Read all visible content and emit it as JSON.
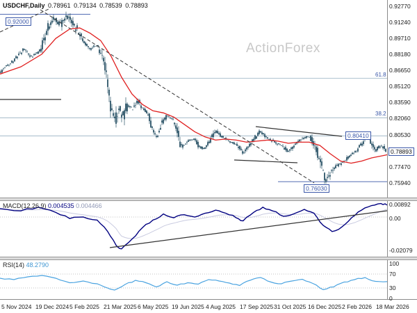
{
  "window": {
    "symbol_label": "USDCHF,Daily",
    "ohlc": {
      "open": "0.78961",
      "high": "0.79134",
      "low": "0.78539",
      "close": "0.78893"
    },
    "watermark": "ActionForex"
  },
  "colors": {
    "candle": "#2b5468",
    "ma": "#e02020",
    "macd": "#000080",
    "macd_signal": "#c9cbe0",
    "rsi": "#4aa3e0",
    "level_line": "#96afc0",
    "accent_line": "#3a57a8",
    "annotation": "#333333",
    "box": "#3a57a8",
    "watermark": "#c8c8c8",
    "dotted": "#b0b0b0",
    "frame": "#8a8a8a"
  },
  "chart_data": [
    {
      "type": "candlestick",
      "symbol": "USDCHF",
      "timeframe": "Daily",
      "title": "USDCHF,Daily",
      "ohlc_display": [
        0.78961,
        0.79134,
        0.78539,
        0.78893
      ],
      "last_close": 0.78893,
      "bar_count": 278,
      "seed": 42,
      "ylim": [
        0.7452,
        0.9337
      ],
      "y_axis": {
        "labels": [
          [
            "0.92770",
            0.9277
          ],
          [
            "0.91240",
            0.9124
          ],
          [
            "0.89710",
            0.8971
          ],
          [
            "0.88180",
            0.8818
          ],
          [
            "0.86650",
            0.8665
          ],
          [
            "0.85120",
            0.8512
          ],
          [
            "0.83590",
            0.8359
          ],
          [
            "0.82060",
            0.8206
          ],
          [
            "0.80530",
            0.8053
          ],
          [
            "0.79000",
            0.79
          ],
          [
            "0.77470",
            0.7747
          ],
          [
            "0.75940",
            0.7594
          ]
        ]
      },
      "x_axis_dates": [
        "5 Nov 2024",
        "19 Dec 2024",
        "5 Feb 2025",
        "21 Mar 2025",
        "6 May 2025",
        "19 Jun 2025",
        "4 Aug 2025",
        "17 Sep 2025",
        "31 Oct 2025",
        "16 Dec 2025",
        "2 Feb 2026",
        "18 Mar 2026"
      ],
      "price_path": [
        [
          0.0,
          0.864
        ],
        [
          0.014,
          0.87
        ],
        [
          0.036,
          0.876
        ],
        [
          0.063,
          0.887
        ],
        [
          0.081,
          0.879
        ],
        [
          0.104,
          0.885
        ],
        [
          0.122,
          0.906
        ],
        [
          0.14,
          0.917
        ],
        [
          0.158,
          0.91
        ],
        [
          0.174,
          0.9185
        ],
        [
          0.188,
          0.912
        ],
        [
          0.201,
          0.905
        ],
        [
          0.215,
          0.895
        ],
        [
          0.233,
          0.887
        ],
        [
          0.251,
          0.891
        ],
        [
          0.266,
          0.878
        ],
        [
          0.277,
          0.86
        ],
        [
          0.287,
          0.83
        ],
        [
          0.298,
          0.818
        ],
        [
          0.309,
          0.831
        ],
        [
          0.32,
          0.822
        ],
        [
          0.33,
          0.834
        ],
        [
          0.345,
          0.829
        ],
        [
          0.356,
          0.839
        ],
        [
          0.37,
          0.83
        ],
        [
          0.384,
          0.824
        ],
        [
          0.397,
          0.808
        ],
        [
          0.408,
          0.802
        ],
        [
          0.418,
          0.816
        ],
        [
          0.433,
          0.824
        ],
        [
          0.449,
          0.819
        ],
        [
          0.461,
          0.805
        ],
        [
          0.47,
          0.793
        ],
        [
          0.487,
          0.799
        ],
        [
          0.503,
          0.801
        ],
        [
          0.515,
          0.794
        ],
        [
          0.531,
          0.7915
        ],
        [
          0.548,
          0.802
        ],
        [
          0.558,
          0.8085
        ],
        [
          0.575,
          0.803
        ],
        [
          0.594,
          0.799
        ],
        [
          0.612,
          0.796
        ],
        [
          0.63,
          0.788
        ],
        [
          0.648,
          0.796
        ],
        [
          0.666,
          0.805
        ],
        [
          0.675,
          0.8085
        ],
        [
          0.693,
          0.802
        ],
        [
          0.711,
          0.798
        ],
        [
          0.729,
          0.795
        ],
        [
          0.747,
          0.789
        ],
        [
          0.765,
          0.7965
        ],
        [
          0.783,
          0.8015
        ],
        [
          0.801,
          0.8035
        ],
        [
          0.81,
          0.799
        ],
        [
          0.819,
          0.79
        ],
        [
          0.828,
          0.78
        ],
        [
          0.837,
          0.769
        ],
        [
          0.846,
          0.7615
        ],
        [
          0.855,
          0.769
        ],
        [
          0.873,
          0.7755
        ],
        [
          0.89,
          0.7795
        ],
        [
          0.908,
          0.7855
        ],
        [
          0.926,
          0.7905
        ],
        [
          0.944,
          0.8005
        ],
        [
          0.953,
          0.8035
        ],
        [
          0.962,
          0.7965
        ],
        [
          0.971,
          0.7895
        ],
        [
          0.98,
          0.7935
        ],
        [
          0.989,
          0.795
        ],
        [
          1.0,
          0.7889
        ]
      ],
      "vol_zones": [
        [
          0.11,
          0.21,
          0.003
        ],
        [
          0.26,
          0.33,
          0.004
        ],
        [
          0.8,
          0.86,
          0.0025
        ]
      ],
      "ma_path": [
        [
          0.0,
          0.863
        ],
        [
          0.054,
          0.87
        ],
        [
          0.108,
          0.882
        ],
        [
          0.144,
          0.897
        ],
        [
          0.18,
          0.906
        ],
        [
          0.206,
          0.907
        ],
        [
          0.233,
          0.902
        ],
        [
          0.26,
          0.895
        ],
        [
          0.287,
          0.88
        ],
        [
          0.314,
          0.86
        ],
        [
          0.341,
          0.844
        ],
        [
          0.368,
          0.834
        ],
        [
          0.395,
          0.828
        ],
        [
          0.422,
          0.826
        ],
        [
          0.449,
          0.822
        ],
        [
          0.476,
          0.815
        ],
        [
          0.503,
          0.808
        ],
        [
          0.53,
          0.803
        ],
        [
          0.557,
          0.8
        ],
        [
          0.583,
          0.801
        ],
        [
          0.61,
          0.8
        ],
        [
          0.637,
          0.798
        ],
        [
          0.664,
          0.799
        ],
        [
          0.691,
          0.8
        ],
        [
          0.718,
          0.799
        ],
        [
          0.745,
          0.797
        ],
        [
          0.772,
          0.798
        ],
        [
          0.799,
          0.798
        ],
        [
          0.826,
          0.795
        ],
        [
          0.853,
          0.787
        ],
        [
          0.88,
          0.78
        ],
        [
          0.907,
          0.778
        ],
        [
          0.934,
          0.78
        ],
        [
          0.96,
          0.783
        ],
        [
          0.987,
          0.785
        ],
        [
          1.0,
          0.786
        ]
      ],
      "levels": [
        {
          "label": "0.92000",
          "price": 0.92,
          "line_x1": 0,
          "line_x2": 130,
          "box_x": 8,
          "box_offset": 4,
          "accent": true,
          "fib": false
        },
        {
          "label": "61.8",
          "price": 0.859,
          "line_x1": 0,
          "line_x2": 557,
          "text_x": 540,
          "accent": false,
          "fib": true
        },
        {
          "label": "38.2",
          "price": 0.8213,
          "line_x1": 0,
          "line_x2": 557,
          "text_x": 540,
          "accent": false,
          "fib": true
        },
        {
          "label": "0.80410",
          "price": 0.8041,
          "line_x1": 0,
          "line_x2": 557,
          "box_x": 497,
          "box_offset": -6,
          "accent": false,
          "fib": false
        },
        {
          "label": "0.76030",
          "price": 0.7603,
          "line_x1": 400,
          "line_x2": 557,
          "box_x": 437,
          "box_offset": 4,
          "accent": true,
          "fib": false
        }
      ],
      "current_price": {
        "label": "0.78893",
        "price": 0.78893
      },
      "trendlines": [
        {
          "name": "descending-dashed-trendline",
          "x1": 58,
          "y1": 14,
          "x2": 452,
          "y2": 263,
          "dash": "5 3"
        },
        {
          "name": "peak-dashed-segment",
          "x1": 0,
          "y1": 46,
          "x2": 70,
          "y2": 13,
          "dash": "5 3"
        },
        {
          "name": "left-horizontal-segment",
          "x1": 0,
          "y1": 143,
          "x2": 88,
          "y2": 143,
          "dash": ""
        },
        {
          "name": "wedge-upper-line",
          "x1": 368,
          "y1": 182,
          "x2": 492,
          "y2": 196,
          "dash": ""
        },
        {
          "name": "wedge-lower-line",
          "x1": 337,
          "y1": 230,
          "x2": 428,
          "y2": 234,
          "dash": ""
        }
      ]
    },
    {
      "type": "line",
      "name": "MACD(12,26,9)",
      "values_display": [
        "0.004535",
        "0.004466"
      ],
      "ylim": [
        -0.0259,
        0.0109
      ],
      "y_labels": [
        [
          "0.00892",
          0.00892
        ],
        [
          "0.00",
          0
        ],
        [
          "-0.02079",
          -0.02079
        ]
      ],
      "macd_path": [
        [
          0.0,
          0.0055
        ],
        [
          0.054,
          0.004
        ],
        [
          0.099,
          0.0064
        ],
        [
          0.144,
          0.003
        ],
        [
          0.18,
          -0.001
        ],
        [
          0.215,
          0.0
        ],
        [
          0.251,
          -0.002
        ],
        [
          0.278,
          -0.0094
        ],
        [
          0.3,
          -0.0185
        ],
        [
          0.314,
          -0.0208
        ],
        [
          0.341,
          -0.0144
        ],
        [
          0.368,
          -0.0069
        ],
        [
          0.395,
          -0.002
        ],
        [
          0.422,
          0.002
        ],
        [
          0.449,
          -0.0005
        ],
        [
          0.476,
          0.0015
        ],
        [
          0.503,
          0.0
        ],
        [
          0.53,
          0.0025
        ],
        [
          0.557,
          0.0045
        ],
        [
          0.583,
          0.0025
        ],
        [
          0.61,
          -0.0005
        ],
        [
          0.628,
          -0.0025
        ],
        [
          0.655,
          0.003
        ],
        [
          0.679,
          0.0064
        ],
        [
          0.704,
          0.004
        ],
        [
          0.732,
          0.0005
        ],
        [
          0.758,
          0.002
        ],
        [
          0.786,
          0.005
        ],
        [
          0.811,
          0.0025
        ],
        [
          0.835,
          -0.0055
        ],
        [
          0.858,
          -0.0095
        ],
        [
          0.883,
          -0.0065
        ],
        [
          0.908,
          -0.0005
        ],
        [
          0.934,
          0.0045
        ],
        [
          0.96,
          0.0075
        ],
        [
          0.984,
          0.0088
        ],
        [
          1.0,
          0.0078
        ]
      ],
      "trendlines": [
        {
          "name": "macd-rising-trendline",
          "x1": 158,
          "y1": 356,
          "x2": 557,
          "y2": 303,
          "dash": ""
        }
      ]
    },
    {
      "type": "line",
      "name": "RSI(14)",
      "value_display": "48.2790",
      "ylim": [
        0,
        100
      ],
      "guides": [
        70,
        30
      ],
      "y_labels": [
        [
          "100",
          100
        ],
        [
          "70",
          70
        ],
        [
          "30",
          30
        ],
        [
          "0",
          0
        ]
      ],
      "path": [
        [
          0.0,
          58
        ],
        [
          0.036,
          54
        ],
        [
          0.072,
          62
        ],
        [
          0.108,
          66
        ],
        [
          0.144,
          58
        ],
        [
          0.18,
          45
        ],
        [
          0.215,
          50
        ],
        [
          0.251,
          42
        ],
        [
          0.278,
          30
        ],
        [
          0.296,
          24
        ],
        [
          0.323,
          40
        ],
        [
          0.35,
          52
        ],
        [
          0.377,
          45
        ],
        [
          0.404,
          33
        ],
        [
          0.431,
          48
        ],
        [
          0.458,
          38
        ],
        [
          0.485,
          45
        ],
        [
          0.512,
          41
        ],
        [
          0.539,
          54
        ],
        [
          0.566,
          50
        ],
        [
          0.593,
          44
        ],
        [
          0.619,
          37
        ],
        [
          0.646,
          52
        ],
        [
          0.673,
          60
        ],
        [
          0.7,
          47
        ],
        [
          0.727,
          42
        ],
        [
          0.754,
          50
        ],
        [
          0.781,
          55
        ],
        [
          0.808,
          43
        ],
        [
          0.835,
          25
        ],
        [
          0.862,
          33
        ],
        [
          0.889,
          47
        ],
        [
          0.916,
          54
        ],
        [
          0.943,
          60
        ],
        [
          0.97,
          49
        ],
        [
          1.0,
          48.3
        ]
      ]
    }
  ]
}
